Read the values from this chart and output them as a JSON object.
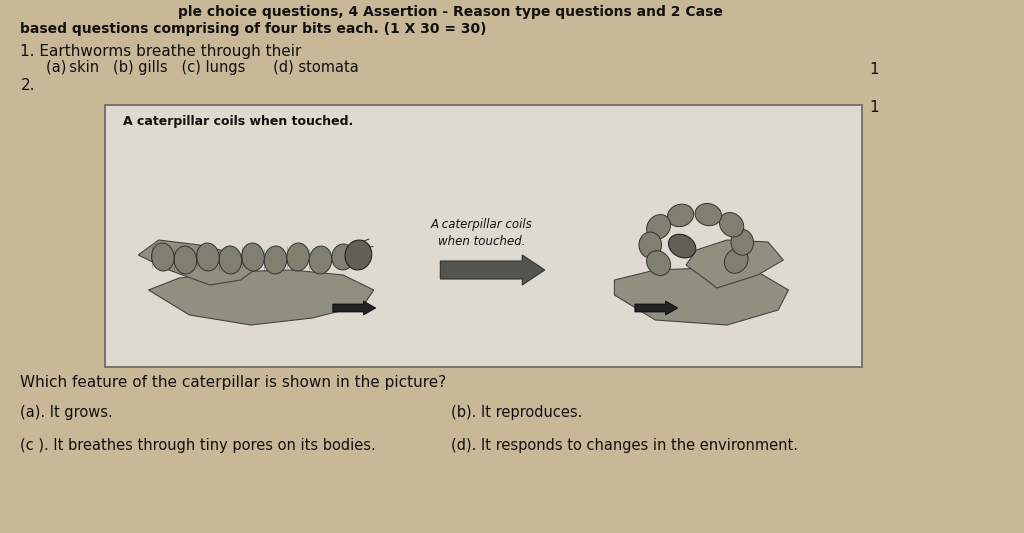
{
  "bg_color": "#c8b898",
  "paper_color": "#e8e4d8",
  "header_line1": "ple choice questions, 4 Assertion - Reason type questions and 2 Case",
  "header_line2": "based questions comprising of four bits each. (1 X 30 = 30)",
  "q1_text": "1. Earthworms breathe through their",
  "q1_options": "(a) skin   (b) gills   (c) lungs      (d) stomata",
  "q1_mark": "1",
  "q2_num": "2.",
  "q2_mark": "1",
  "box_title": "A caterpillar coils when touched.",
  "arrow_label": "A caterpillar coils\nwhen touched.",
  "q2_question": "Which feature of the caterpillar is shown in the picture?",
  "q2_opt_a": "(a). It grows.",
  "q2_opt_b": "(b). It reproduces.",
  "q2_opt_c": "(c ). It breathes through tiny pores on its bodies.",
  "q2_opt_d": "(d). It responds to changes in the environment.",
  "body_fontsize": 11,
  "options_fontsize": 10.5,
  "seg_color": "#808070",
  "seg_edge": "#333330",
  "leaf_color": "#909080",
  "leaf_edge": "#444440"
}
